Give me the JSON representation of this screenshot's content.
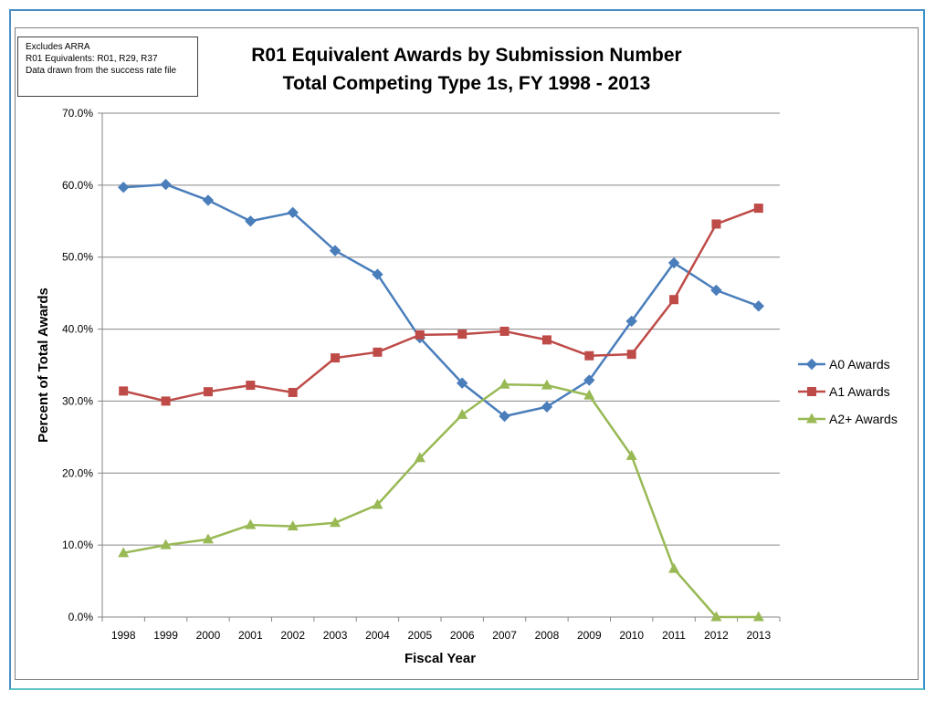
{
  "notes": [
    "Excludes ARRA",
    "R01 Equivalents: R01, R29, R37",
    "Data drawn from the success rate file"
  ],
  "chart_data": {
    "type": "line",
    "title": [
      "R01 Equivalent Awards by Submission Number",
      "Total Competing Type 1s, FY 1998 - 2013"
    ],
    "xlabel": "Fiscal Year",
    "ylabel": "Percent of Total Awards",
    "categories": [
      "1998",
      "1999",
      "2000",
      "2001",
      "2002",
      "2003",
      "2004",
      "2005",
      "2006",
      "2007",
      "2008",
      "2009",
      "2010",
      "2011",
      "2012",
      "2013"
    ],
    "ylim": [
      0,
      70
    ],
    "yticks": [
      "0.0%",
      "10.0%",
      "20.0%",
      "30.0%",
      "40.0%",
      "50.0%",
      "60.0%",
      "70.0%"
    ],
    "grid": true,
    "legend_position": "right",
    "series": [
      {
        "name": "A0 Awards",
        "color": "#4a7ebb",
        "marker": "diamond",
        "values": [
          59.7,
          60.1,
          57.9,
          55.0,
          56.2,
          50.9,
          47.6,
          38.8,
          32.5,
          27.9,
          29.2,
          32.9,
          41.1,
          49.2,
          45.4,
          43.2
        ]
      },
      {
        "name": "A1 Awards",
        "color": "#be4b48",
        "marker": "square",
        "values": [
          31.4,
          30.0,
          31.3,
          32.2,
          31.2,
          36.0,
          36.8,
          39.2,
          39.3,
          39.7,
          38.5,
          36.3,
          36.5,
          44.1,
          54.6,
          56.8
        ]
      },
      {
        "name": "A2+ Awards",
        "color": "#98b954",
        "marker": "triangle",
        "values": [
          8.9,
          10.0,
          10.8,
          12.8,
          12.6,
          13.1,
          15.6,
          22.1,
          28.1,
          32.3,
          32.2,
          30.8,
          22.4,
          6.7,
          0.0,
          0.0
        ]
      }
    ]
  }
}
